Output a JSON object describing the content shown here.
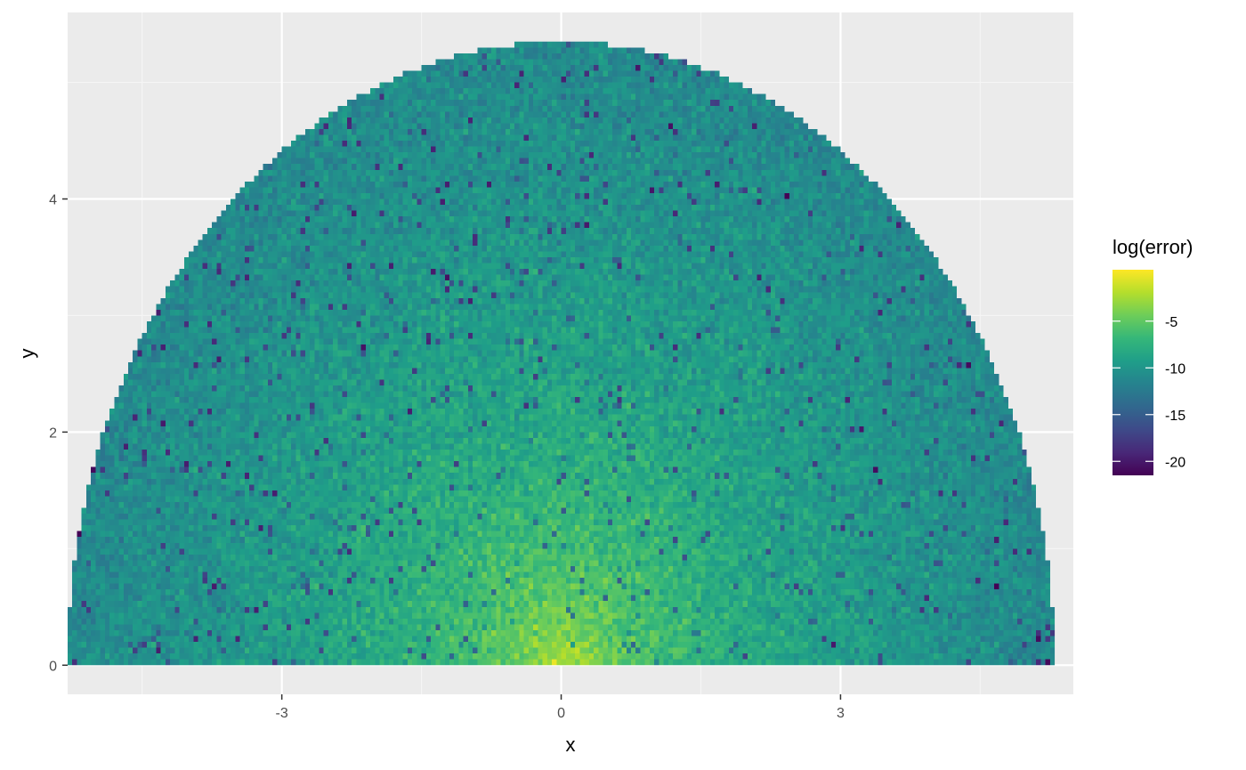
{
  "chart_data": {
    "type": "heatmap",
    "title": "",
    "xlabel": "x",
    "ylabel": "y",
    "xlim": [
      -5.3,
      5.5
    ],
    "ylim": [
      -0.25,
      5.6
    ],
    "x_ticks": [
      -3,
      0,
      3
    ],
    "x_tick_labels": [
      "-3",
      "0",
      "3"
    ],
    "y_ticks": [
      0,
      2,
      4
    ],
    "y_tick_labels": [
      "0",
      "2",
      "4"
    ],
    "grid": true,
    "legend": {
      "title": "log(error)",
      "placement": "right",
      "breaks": [
        -5,
        -10,
        -15,
        -20
      ],
      "labels": [
        "-5",
        "-10",
        "-15",
        "-20"
      ],
      "range": [
        -21.5,
        0.5
      ]
    },
    "colormap": [
      "#440154",
      "#482878",
      "#3E4A89",
      "#31688E",
      "#26828E",
      "#1F9E89",
      "#35B779",
      "#6DCD59",
      "#B4DE2C",
      "#FDE725"
    ],
    "region": {
      "shape": "half-ellipse",
      "x_min": -5.3,
      "x_max": 5.3,
      "y_max": 5.35,
      "cell_width": 0.05,
      "cell_height": 0.05
    },
    "colors": {
      "panel_background": "#EBEBEB",
      "grid_major": "#FFFFFF",
      "grid_minor": "#F5F5F5"
    }
  }
}
